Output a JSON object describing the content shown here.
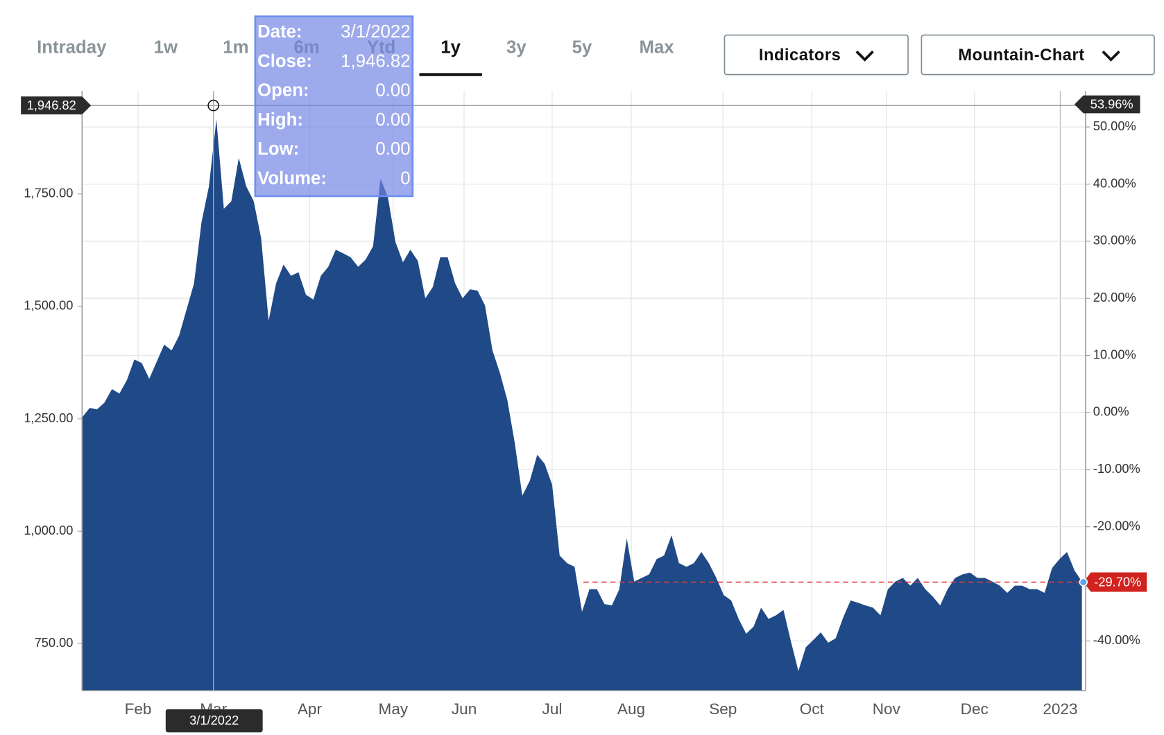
{
  "tabs": [
    "Intraday",
    "1w",
    "1m",
    "6m",
    "Ytd",
    "1y",
    "3y",
    "5y",
    "Max"
  ],
  "active_tab": "1y",
  "buttons": [
    "Indicators",
    "Mountain-Chart"
  ],
  "chart_data": {
    "type": "area",
    "series": [
      {
        "color": "#1f4a87",
        "values": [
          1253,
          1274,
          1271,
          1286,
          1316,
          1306,
          1336,
          1382,
          1374,
          1339,
          1377,
          1415,
          1402,
          1435,
          1493,
          1551,
          1687,
          1767,
          1916,
          1717,
          1734,
          1830,
          1767,
          1734,
          1651,
          1468,
          1551,
          1593,
          1568,
          1576,
          1526,
          1515,
          1568,
          1588,
          1626,
          1618,
          1609,
          1588,
          1604,
          1634,
          1784,
          1742,
          1643,
          1598,
          1626,
          1601,
          1518,
          1543,
          1609,
          1609,
          1551,
          1518,
          1538,
          1535,
          1502,
          1402,
          1352,
          1291,
          1195,
          1079,
          1112,
          1170,
          1150,
          1103,
          946,
          929,
          921,
          821,
          871,
          871,
          838,
          835,
          871,
          984,
          888,
          896,
          904,
          938,
          946,
          991,
          929,
          921,
          929,
          954,
          929,
          896,
          858,
          846,
          805,
          772,
          788,
          830,
          805,
          813,
          825,
          755,
          689,
          742,
          758,
          775,
          752,
          762,
          808,
          846,
          841,
          835,
          830,
          813,
          871,
          888,
          896,
          879,
          896,
          871,
          855,
          835,
          871,
          896,
          904,
          908,
          896,
          896,
          888,
          879,
          863,
          879,
          879,
          871,
          871,
          863,
          918,
          938,
          954,
          913,
          888
        ]
      }
    ],
    "xlim": [
      0,
      134.5
    ],
    "xticks": [
      {
        "value": 7.5,
        "label": "Feb"
      },
      {
        "value": 17.6,
        "label": "Mar"
      },
      {
        "value": 30.5,
        "label": "Apr"
      },
      {
        "value": 41.7,
        "label": "May"
      },
      {
        "value": 51.2,
        "label": "Jun"
      },
      {
        "value": 63,
        "label": "Jul"
      },
      {
        "value": 73.6,
        "label": "Aug"
      },
      {
        "value": 85.9,
        "label": "Sep"
      },
      {
        "value": 97.8,
        "label": "Oct"
      },
      {
        "value": 107.8,
        "label": "Nov"
      },
      {
        "value": 119.6,
        "label": "Dec"
      },
      {
        "value": 131.1,
        "label": "2023"
      }
    ],
    "ylim": [
      645.5,
      1979
    ],
    "yticks": [
      {
        "value": 750,
        "label": "750.00"
      },
      {
        "value": 1000,
        "label": "1,000.00"
      },
      {
        "value": 1250,
        "label": "1,250.00"
      },
      {
        "value": 1500,
        "label": "1,500.00"
      },
      {
        "value": 1750,
        "label": "1,750.00"
      }
    ],
    "y2lim": [
      -48.7,
      56.3
    ],
    "y2ticks": [
      {
        "value": 50,
        "label": "50.00%"
      },
      {
        "value": 40,
        "label": "40.00%"
      },
      {
        "value": 30,
        "label": "30.00%"
      },
      {
        "value": 20,
        "label": "20.00%"
      },
      {
        "value": 10,
        "label": "10.00%"
      },
      {
        "value": 0,
        "label": "0.00%"
      },
      {
        "value": -10,
        "label": "-10.00%"
      },
      {
        "value": -20,
        "label": "-20.00%"
      },
      {
        "value": -40,
        "label": "-40.00%"
      }
    ],
    "grid": true,
    "crosshair_change": {
      "value": 53.96,
      "label": "53.96%"
    },
    "last_change": {
      "value": -29.7,
      "label": "-29.70%"
    },
    "tooltip": {
      "rows": [
        {
          "name": "Date:",
          "value": "3/1/2022"
        },
        {
          "name": "Close:",
          "value": {
            "value": 1946.82,
            "label": "1,946.82"
          }
        },
        {
          "name": "Open:",
          "value": {
            "value": 0,
            "label": "0.00"
          }
        },
        {
          "name": "High:",
          "value": {
            "value": 0,
            "label": "0.00"
          }
        },
        {
          "name": "Low:",
          "value": {
            "value": 0,
            "label": "0.00"
          }
        },
        {
          "name": "Volume:",
          "value": 0
        }
      ]
    }
  }
}
